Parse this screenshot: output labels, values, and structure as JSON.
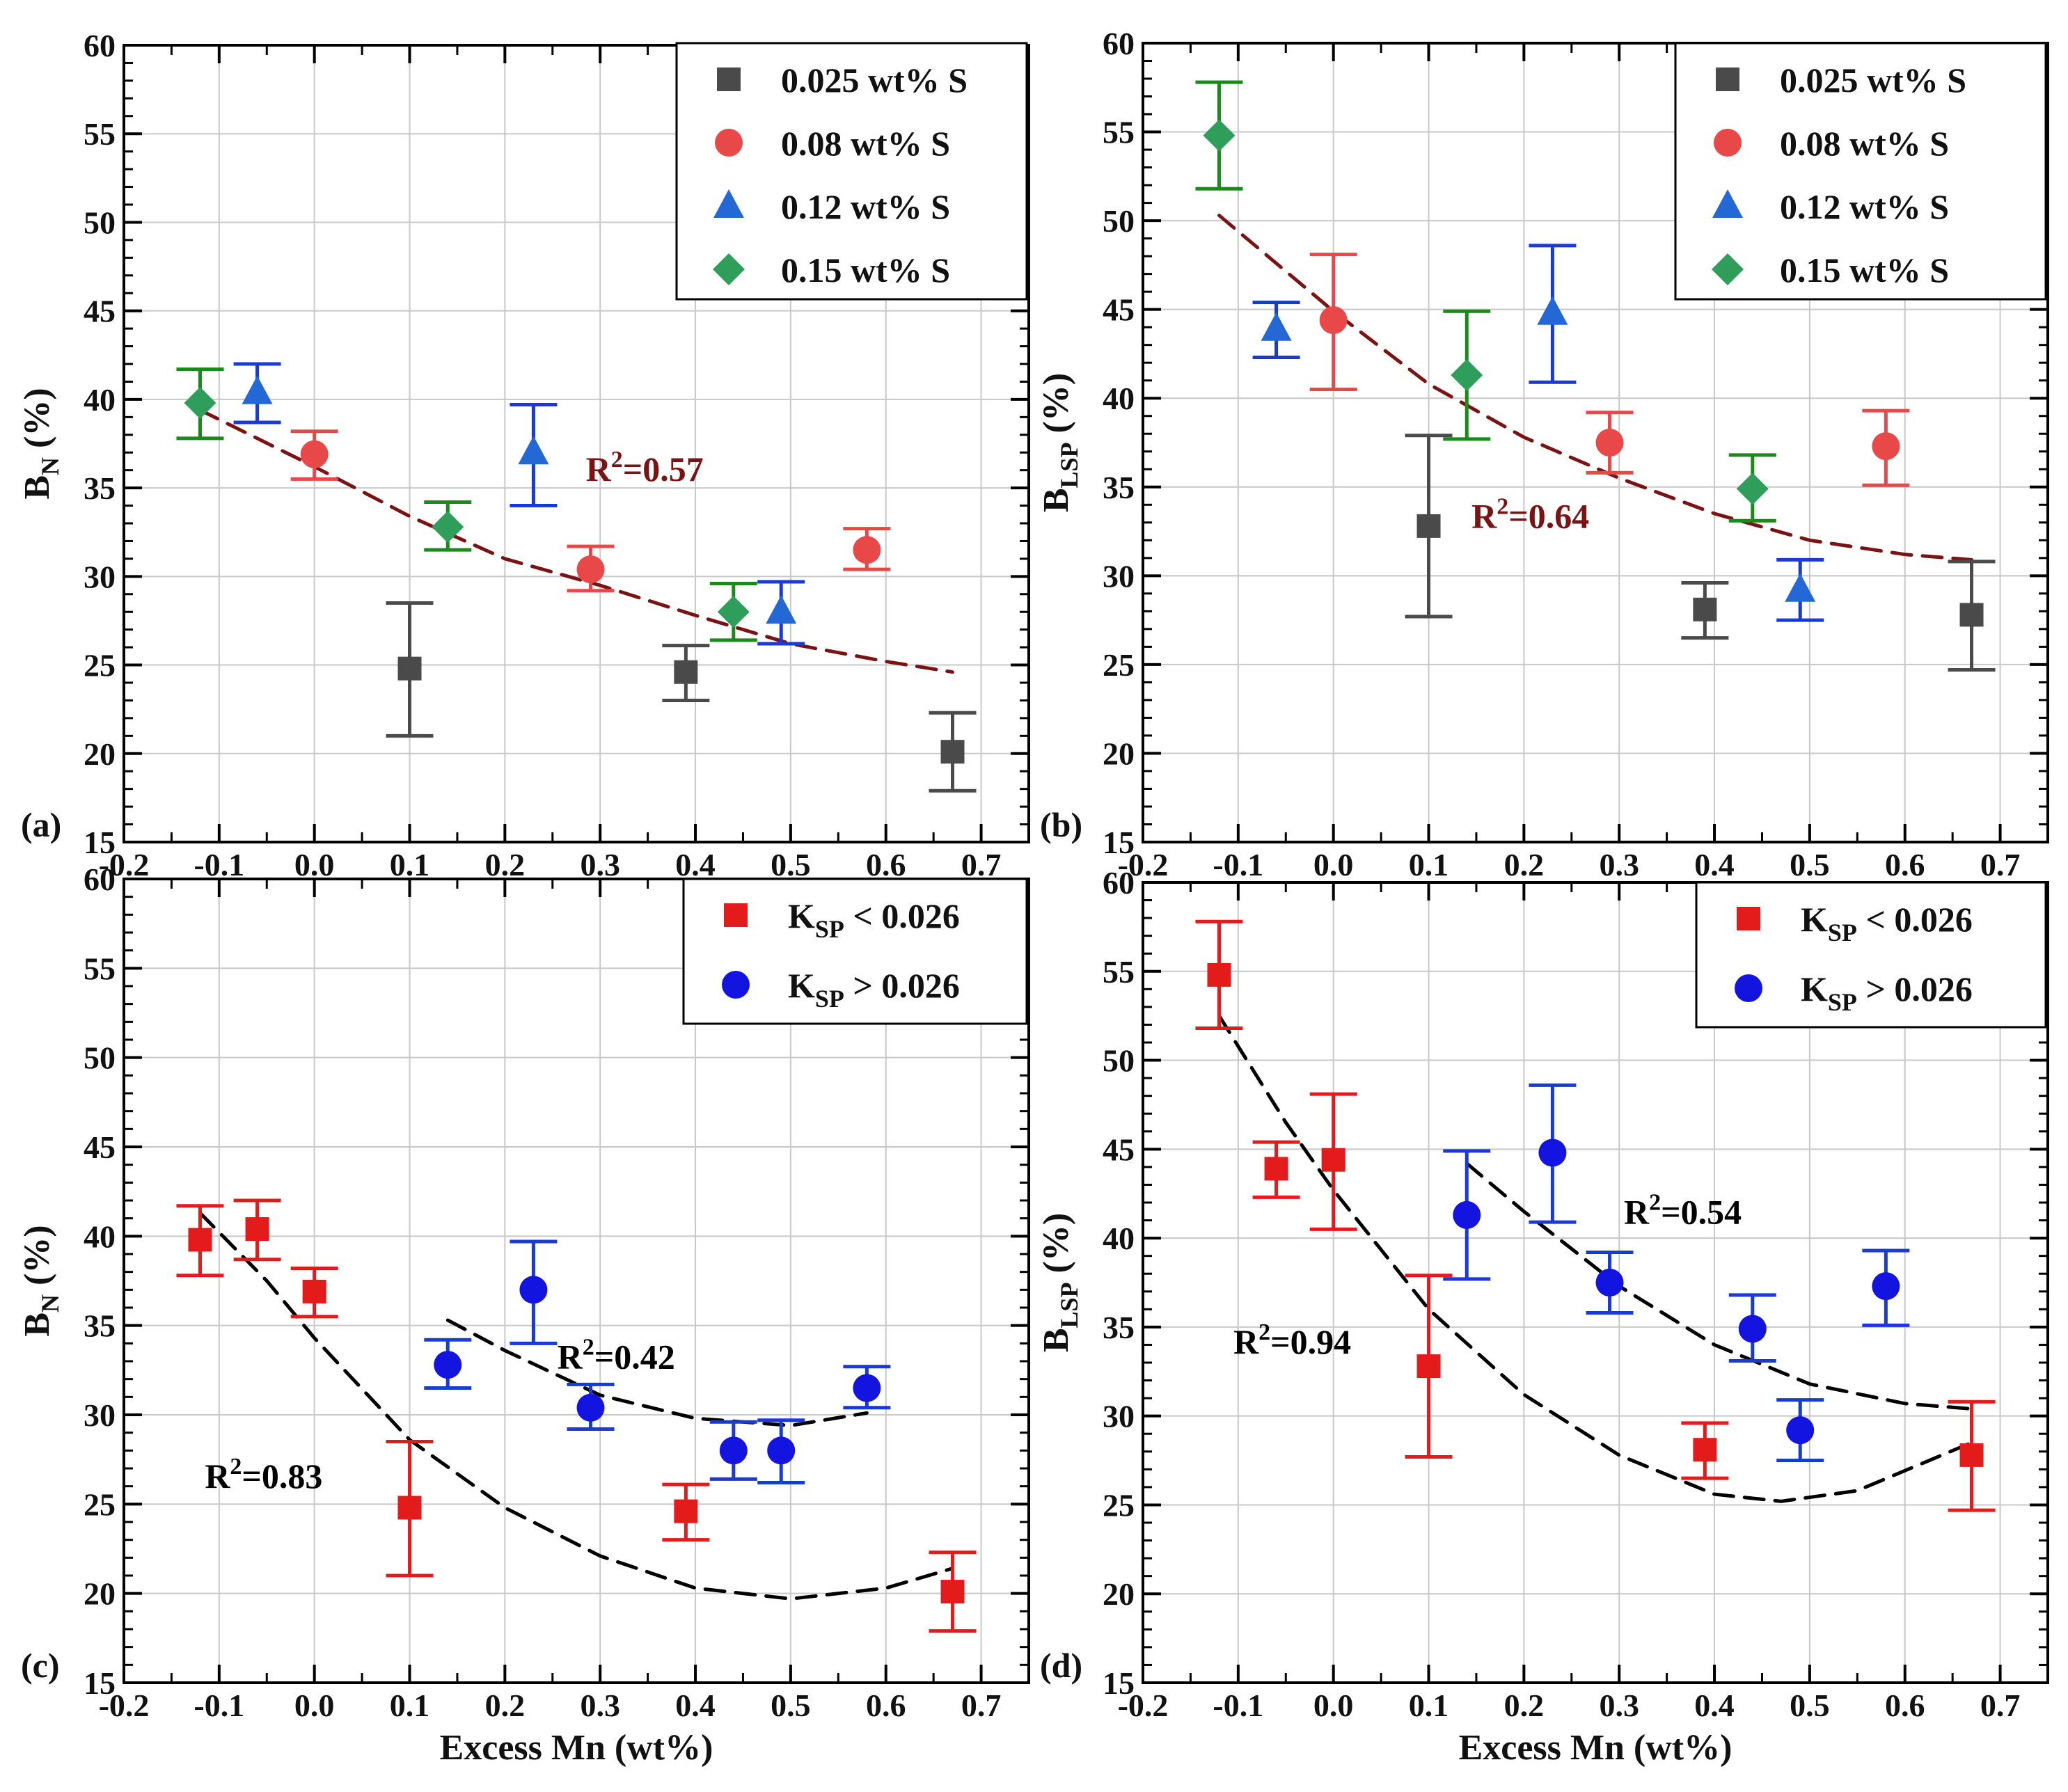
{
  "colors": {
    "gray": "#4a4a4a",
    "red_light": "#e84848",
    "blue_tri": "#2468d6",
    "green": "#2f9e5a",
    "red": "#e31b1b",
    "blue": "#1414e0",
    "err_green": "#1a8a1a",
    "err_blue": "#1a3ad6",
    "fit_dark": "#7a1414",
    "fit_black": "#000000"
  },
  "chart_data": [
    {
      "id": "a",
      "type": "scatter",
      "panel_label": "(a)",
      "ylabel_main": "B",
      "ylabel_sub": "N",
      "ylabel_tail": " (%)",
      "xlabel": "",
      "xlim": [
        -0.2,
        0.75
      ],
      "ylim": [
        15,
        60
      ],
      "xticks": [
        "-0.2",
        "-0.1",
        "0.0",
        "0.1",
        "0.2",
        "0.3",
        "0.4",
        "0.5",
        "0.6",
        "0.7"
      ],
      "yticks": [
        "15",
        "20",
        "25",
        "30",
        "35",
        "40",
        "45",
        "50",
        "55",
        "60"
      ],
      "legend_position": "top-right",
      "series": [
        {
          "name": "0.025 wt% S",
          "name_parts": [
            "0.025 wt% S"
          ],
          "marker": "square",
          "color": "gray",
          "err_color": "gray",
          "points": [
            {
              "x": 0.1,
              "y": 24.8,
              "lo": 21.0,
              "hi": 28.5
            },
            {
              "x": 0.39,
              "y": 24.6,
              "lo": 23.0,
              "hi": 26.1
            },
            {
              "x": 0.67,
              "y": 20.1,
              "lo": 17.9,
              "hi": 22.3
            }
          ]
        },
        {
          "name": "0.08 wt% S",
          "name_parts": [
            "0.08 wt% S"
          ],
          "marker": "circle",
          "color": "red_light",
          "err_color": "red_light",
          "points": [
            {
              "x": 0.0,
              "y": 36.9,
              "lo": 35.5,
              "hi": 38.2
            },
            {
              "x": 0.29,
              "y": 30.4,
              "lo": 29.2,
              "hi": 31.7
            },
            {
              "x": 0.58,
              "y": 31.5,
              "lo": 30.4,
              "hi": 32.7
            }
          ]
        },
        {
          "name": "0.12 wt% S",
          "name_parts": [
            "0.12 wt% S"
          ],
          "marker": "triangle",
          "color": "blue_tri",
          "err_color": "err_blue",
          "points": [
            {
              "x": -0.06,
              "y": 40.4,
              "lo": 38.7,
              "hi": 42.0
            },
            {
              "x": 0.23,
              "y": 37.0,
              "lo": 34.0,
              "hi": 39.7
            },
            {
              "x": 0.49,
              "y": 28.0,
              "lo": 26.2,
              "hi": 29.7
            }
          ]
        },
        {
          "name": "0.15 wt% S",
          "name_parts": [
            "0.15 wt% S"
          ],
          "marker": "diamond",
          "color": "green",
          "err_color": "err_green",
          "points": [
            {
              "x": -0.12,
              "y": 39.8,
              "lo": 37.8,
              "hi": 41.7
            },
            {
              "x": 0.14,
              "y": 32.8,
              "lo": 31.5,
              "hi": 34.2
            },
            {
              "x": 0.44,
              "y": 28.0,
              "lo": 26.4,
              "hi": 29.6
            }
          ]
        }
      ],
      "fits": [
        {
          "color": "fit_dark",
          "dash": "long",
          "points": [
            [
              -0.12,
              39.4
            ],
            [
              0.0,
              36.2
            ],
            [
              0.1,
              33.4
            ],
            [
              0.2,
              31.0
            ],
            [
              0.3,
              29.5
            ],
            [
              0.4,
              27.8
            ],
            [
              0.5,
              26.2
            ],
            [
              0.6,
              25.2
            ],
            [
              0.67,
              24.6
            ]
          ]
        }
      ],
      "annotations": [
        {
          "label_main": "R",
          "label_sup": "2",
          "label_tail": "=0.57",
          "x": 0.285,
          "y": 35.4,
          "color": "fit_dark"
        }
      ]
    },
    {
      "id": "b",
      "type": "scatter",
      "panel_label": "(b)",
      "ylabel_main": "B",
      "ylabel_sub": "LSP",
      "ylabel_tail": " (%)",
      "xlabel": "",
      "xlim": [
        -0.2,
        0.75
      ],
      "ylim": [
        15,
        60
      ],
      "xticks": [
        "-0.2",
        "-0.1",
        "0.0",
        "0.1",
        "0.2",
        "0.3",
        "0.4",
        "0.5",
        "0.6",
        "0.7"
      ],
      "yticks": [
        "15",
        "20",
        "25",
        "30",
        "35",
        "40",
        "45",
        "50",
        "55",
        "60"
      ],
      "legend_position": "top-right",
      "series": [
        {
          "name": "0.025 wt% S",
          "name_parts": [
            "0.025 wt% S"
          ],
          "marker": "square",
          "color": "gray",
          "err_color": "gray",
          "points": [
            {
              "x": 0.1,
              "y": 32.8,
              "lo": 27.7,
              "hi": 37.9
            },
            {
              "x": 0.39,
              "y": 28.1,
              "lo": 26.5,
              "hi": 29.6
            },
            {
              "x": 0.67,
              "y": 27.8,
              "lo": 24.7,
              "hi": 30.8
            }
          ]
        },
        {
          "name": "0.08 wt% S",
          "name_parts": [
            "0.08 wt% S"
          ],
          "marker": "circle",
          "color": "red_light",
          "err_color": "red_light",
          "points": [
            {
              "x": 0.0,
              "y": 44.4,
              "lo": 40.5,
              "hi": 48.1
            },
            {
              "x": 0.29,
              "y": 37.5,
              "lo": 35.8,
              "hi": 39.2
            },
            {
              "x": 0.58,
              "y": 37.3,
              "lo": 35.1,
              "hi": 39.3
            }
          ]
        },
        {
          "name": "0.12 wt% S",
          "name_parts": [
            "0.12 wt% S"
          ],
          "marker": "triangle",
          "color": "blue_tri",
          "err_color": "err_blue",
          "points": [
            {
              "x": -0.06,
              "y": 43.9,
              "lo": 42.3,
              "hi": 45.4
            },
            {
              "x": 0.23,
              "y": 44.8,
              "lo": 40.9,
              "hi": 48.6
            },
            {
              "x": 0.49,
              "y": 29.2,
              "lo": 27.5,
              "hi": 30.9
            }
          ]
        },
        {
          "name": "0.15 wt% S",
          "name_parts": [
            "0.15 wt% S"
          ],
          "marker": "diamond",
          "color": "green",
          "err_color": "err_green",
          "points": [
            {
              "x": -0.12,
              "y": 54.8,
              "lo": 51.8,
              "hi": 57.8
            },
            {
              "x": 0.14,
              "y": 41.3,
              "lo": 37.7,
              "hi": 44.9
            },
            {
              "x": 0.44,
              "y": 34.9,
              "lo": 33.1,
              "hi": 36.8
            }
          ]
        }
      ],
      "fits": [
        {
          "color": "fit_dark",
          "dash": "long",
          "points": [
            [
              -0.12,
              50.3
            ],
            [
              0.0,
              44.9
            ],
            [
              0.1,
              40.8
            ],
            [
              0.2,
              37.8
            ],
            [
              0.3,
              35.5
            ],
            [
              0.4,
              33.5
            ],
            [
              0.5,
              32.0
            ],
            [
              0.6,
              31.2
            ],
            [
              0.67,
              30.9
            ]
          ]
        }
      ],
      "annotations": [
        {
          "label_main": "R",
          "label_sup": "2",
          "label_tail": "=0.64",
          "x": 0.145,
          "y": 32.7,
          "color": "fit_dark"
        }
      ]
    },
    {
      "id": "c",
      "type": "scatter",
      "panel_label": "(c)",
      "ylabel_main": "B",
      "ylabel_sub": "N",
      "ylabel_tail": " (%)",
      "xlabel": "Excess Mn (wt%)",
      "xlim": [
        -0.2,
        0.75
      ],
      "ylim": [
        15,
        60
      ],
      "xticks": [
        "-0.2",
        "-0.1",
        "0.0",
        "0.1",
        "0.2",
        "0.3",
        "0.4",
        "0.5",
        "0.6",
        "0.7"
      ],
      "yticks": [
        "15",
        "20",
        "25",
        "30",
        "35",
        "40",
        "45",
        "50",
        "55",
        "60"
      ],
      "legend_position": "top-right",
      "series": [
        {
          "name": "KSP < 0.026",
          "name_parts": [
            "K",
            "SP",
            " < 0.026"
          ],
          "marker": "square",
          "color": "red",
          "err_color": "red",
          "points": [
            {
              "x": -0.12,
              "y": 39.8,
              "lo": 37.8,
              "hi": 41.7
            },
            {
              "x": -0.06,
              "y": 40.4,
              "lo": 38.7,
              "hi": 42.0
            },
            {
              "x": 0.0,
              "y": 36.9,
              "lo": 35.5,
              "hi": 38.2
            },
            {
              "x": 0.1,
              "y": 24.8,
              "lo": 21.0,
              "hi": 28.5
            },
            {
              "x": 0.39,
              "y": 24.6,
              "lo": 23.0,
              "hi": 26.1
            },
            {
              "x": 0.67,
              "y": 20.1,
              "lo": 17.9,
              "hi": 22.3
            }
          ]
        },
        {
          "name": "KSP > 0.026",
          "name_parts": [
            "K",
            "SP",
            " > 0.026"
          ],
          "marker": "circle",
          "color": "blue",
          "err_color": "err_blue",
          "points": [
            {
              "x": 0.14,
              "y": 32.8,
              "lo": 31.5,
              "hi": 34.2
            },
            {
              "x": 0.23,
              "y": 37.0,
              "lo": 34.0,
              "hi": 39.7
            },
            {
              "x": 0.29,
              "y": 30.4,
              "lo": 29.2,
              "hi": 31.7
            },
            {
              "x": 0.44,
              "y": 28.0,
              "lo": 26.4,
              "hi": 29.6
            },
            {
              "x": 0.49,
              "y": 28.0,
              "lo": 26.2,
              "hi": 29.7
            },
            {
              "x": 0.58,
              "y": 31.5,
              "lo": 30.4,
              "hi": 32.7
            }
          ]
        }
      ],
      "fits": [
        {
          "color": "fit_black",
          "dash": "long",
          "points": [
            [
              -0.12,
              41.3
            ],
            [
              -0.05,
              37.5
            ],
            [
              0.0,
              34.3
            ],
            [
              0.1,
              28.6
            ],
            [
              0.2,
              24.8
            ],
            [
              0.3,
              22.1
            ],
            [
              0.4,
              20.3
            ],
            [
              0.5,
              19.7
            ],
            [
              0.6,
              20.3
            ],
            [
              0.67,
              21.4
            ]
          ]
        },
        {
          "color": "fit_black",
          "dash": "long",
          "points": [
            [
              0.14,
              35.3
            ],
            [
              0.2,
              33.6
            ],
            [
              0.3,
              31.1
            ],
            [
              0.4,
              29.8
            ],
            [
              0.5,
              29.4
            ],
            [
              0.58,
              30.1
            ]
          ]
        }
      ],
      "annotations": [
        {
          "label_main": "R",
          "label_sup": "2",
          "label_tail": "=0.42",
          "x": 0.255,
          "y": 32.6,
          "color": "fit_black"
        },
        {
          "label_main": "R",
          "label_sup": "2",
          "label_tail": "=0.83",
          "x": -0.115,
          "y": 25.9,
          "color": "fit_black"
        }
      ]
    },
    {
      "id": "d",
      "type": "scatter",
      "panel_label": "(d)",
      "ylabel_main": "B",
      "ylabel_sub": "LSP",
      "ylabel_tail": " (%)",
      "xlabel": "Excess Mn (wt%)",
      "xlim": [
        -0.2,
        0.75
      ],
      "ylim": [
        15,
        60
      ],
      "xticks": [
        "-0.2",
        "-0.1",
        "0.0",
        "0.1",
        "0.2",
        "0.3",
        "0.4",
        "0.5",
        "0.6",
        "0.7"
      ],
      "yticks": [
        "15",
        "20",
        "25",
        "30",
        "35",
        "40",
        "45",
        "50",
        "55",
        "60"
      ],
      "legend_position": "top-right",
      "series": [
        {
          "name": "KSP < 0.026",
          "name_parts": [
            "K",
            "SP",
            " < 0.026"
          ],
          "marker": "square",
          "color": "red",
          "err_color": "red",
          "points": [
            {
              "x": -0.12,
              "y": 54.8,
              "lo": 51.8,
              "hi": 57.8
            },
            {
              "x": -0.06,
              "y": 43.9,
              "lo": 42.3,
              "hi": 45.4
            },
            {
              "x": 0.0,
              "y": 44.4,
              "lo": 40.5,
              "hi": 48.1
            },
            {
              "x": 0.1,
              "y": 32.8,
              "lo": 27.7,
              "hi": 37.9
            },
            {
              "x": 0.39,
              "y": 28.1,
              "lo": 26.5,
              "hi": 29.6
            },
            {
              "x": 0.67,
              "y": 27.8,
              "lo": 24.7,
              "hi": 30.8
            }
          ]
        },
        {
          "name": "KSP > 0.026",
          "name_parts": [
            "K",
            "SP",
            " > 0.026"
          ],
          "marker": "circle",
          "color": "blue",
          "err_color": "err_blue",
          "points": [
            {
              "x": 0.14,
              "y": 41.3,
              "lo": 37.7,
              "hi": 44.9
            },
            {
              "x": 0.23,
              "y": 44.8,
              "lo": 40.9,
              "hi": 48.6
            },
            {
              "x": 0.29,
              "y": 37.5,
              "lo": 35.8,
              "hi": 39.2
            },
            {
              "x": 0.44,
              "y": 34.9,
              "lo": 33.1,
              "hi": 36.8
            },
            {
              "x": 0.49,
              "y": 29.2,
              "lo": 27.5,
              "hi": 30.9
            },
            {
              "x": 0.58,
              "y": 37.3,
              "lo": 35.1,
              "hi": 39.3
            }
          ]
        }
      ],
      "fits": [
        {
          "color": "fit_black",
          "dash": "long",
          "points": [
            [
              -0.12,
              52.5
            ],
            [
              -0.05,
              46.5
            ],
            [
              0.0,
              42.7
            ],
            [
              0.1,
              36.0
            ],
            [
              0.2,
              31.2
            ],
            [
              0.3,
              27.8
            ],
            [
              0.4,
              25.6
            ],
            [
              0.47,
              25.2
            ],
            [
              0.55,
              25.8
            ],
            [
              0.67,
              28.5
            ]
          ]
        },
        {
          "color": "fit_black",
          "dash": "long",
          "points": [
            [
              0.14,
              44.2
            ],
            [
              0.2,
              41.5
            ],
            [
              0.3,
              37.3
            ],
            [
              0.4,
              34.0
            ],
            [
              0.5,
              31.8
            ],
            [
              0.6,
              30.7
            ],
            [
              0.67,
              30.4
            ]
          ]
        }
      ],
      "annotations": [
        {
          "label_main": "R",
          "label_sup": "2",
          "label_tail": "=0.54",
          "x": 0.305,
          "y": 40.8,
          "color": "fit_black"
        },
        {
          "label_main": "R",
          "label_sup": "2",
          "label_tail": "=0.94",
          "x": -0.105,
          "y": 33.5,
          "color": "fit_black"
        }
      ]
    }
  ]
}
